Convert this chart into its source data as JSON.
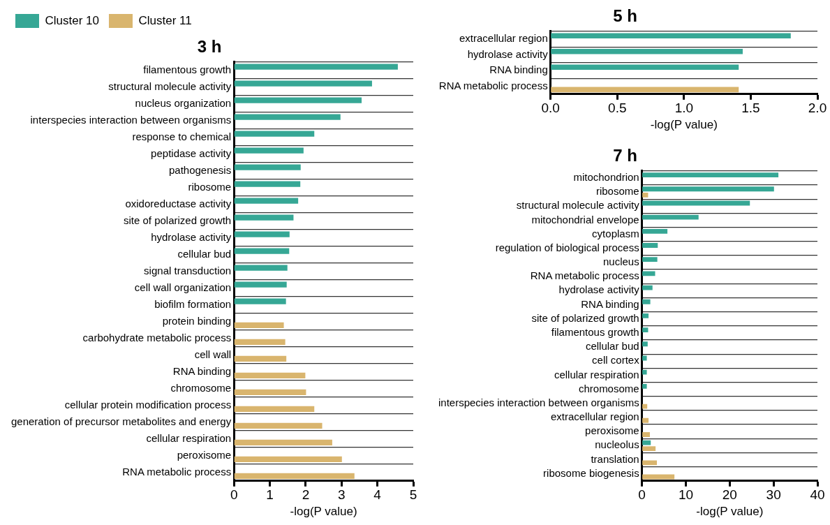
{
  "chart_data": [
    {
      "type": "bar",
      "orientation": "horizontal",
      "title": "3 h",
      "xlabel": "-log(P value)",
      "legend": "top left",
      "grid": "y",
      "categories": [
        "filamentous growth",
        "structural molecule activity",
        "nucleus organization",
        "interspecies interaction between organisms",
        "response to chemical",
        "peptidase activity",
        "pathogenesis",
        "ribosome",
        "oxidoreductase activity",
        "site of polarized growth",
        "hydrolase activity",
        "cellular bud",
        "signal transduction",
        "cell wall organization",
        "biofilm formation",
        "protein binding",
        "carbohydrate metabolic process",
        "cell wall",
        "RNA binding",
        "chromosome",
        "cellular protein modification process",
        "generation of precursor metabolites and energy",
        "cellular respiration",
        "peroxisome",
        "RNA metabolic process"
      ],
      "xlim": [
        0,
        5
      ],
      "xticks": [
        0,
        1,
        2,
        3,
        4,
        5
      ],
      "series": [
        {
          "name": "Cluster 10",
          "color": "#36a795",
          "values": [
            4.57,
            3.85,
            3.56,
            2.97,
            2.24,
            1.94,
            1.86,
            1.85,
            1.79,
            1.66,
            1.55,
            1.54,
            1.49,
            1.47,
            1.45,
            null,
            null,
            null,
            null,
            null,
            null,
            null,
            null,
            null,
            null
          ]
        },
        {
          "name": "Cluster 11",
          "color": "#d9b56e",
          "values": [
            null,
            null,
            null,
            null,
            null,
            null,
            null,
            null,
            null,
            null,
            null,
            null,
            null,
            null,
            null,
            1.39,
            1.43,
            1.46,
            1.99,
            2.01,
            2.24,
            2.46,
            2.74,
            3.01,
            3.36
          ]
        }
      ]
    },
    {
      "type": "bar",
      "orientation": "horizontal",
      "title": "5 h",
      "xlabel": "-log(P value)",
      "grid": "y",
      "categories": [
        "extracellular region",
        "hydrolase activity",
        "RNA binding",
        "RNA metabolic process"
      ],
      "xlim": [
        0,
        2
      ],
      "xticks": [
        {
          "value": 0,
          "label": "0.0"
        },
        {
          "value": 0.5,
          "label": "0.5"
        },
        {
          "value": 1,
          "label": "1.0"
        },
        {
          "value": 1.5,
          "label": "1.5"
        },
        {
          "value": 2,
          "label": "2.0"
        }
      ],
      "series": [
        {
          "color": "#36a795",
          "values": [
            1.8,
            1.44,
            1.41,
            null
          ]
        },
        {
          "color": "#d9b56e",
          "values": [
            null,
            null,
            null,
            1.41
          ]
        }
      ]
    },
    {
      "type": "bar",
      "orientation": "horizontal",
      "title": "7 h",
      "xlabel": "-log(P value)",
      "grid": "y",
      "categories": [
        "mitochondrion",
        "ribosome",
        "structural molecule activity",
        "mitochondrial envelope",
        "cytoplasm",
        "regulation of biological process",
        "nucleus",
        "RNA metabolic process",
        "hydrolase activity",
        "RNA binding",
        "site of polarized growth",
        "filamentous growth",
        "cellular bud",
        "cell cortex",
        "cellular respiration",
        "chromosome",
        "interspecies interaction between organisms",
        "extracellular region",
        "peroxisome",
        "nucleolus",
        "translation",
        "ribosome biogenesis"
      ],
      "xlim": [
        0,
        40
      ],
      "xticks": [
        0,
        10,
        20,
        30,
        40
      ],
      "series": [
        {
          "color": "#36a795",
          "values": [
            31.1,
            30.1,
            24.6,
            12.9,
            5.8,
            3.6,
            3.5,
            3.0,
            2.4,
            1.9,
            1.5,
            1.4,
            1.3,
            1.1,
            1.1,
            1.1,
            null,
            null,
            null,
            2.0,
            null,
            null
          ]
        },
        {
          "color": "#d9b56e",
          "values": [
            null,
            1.4,
            null,
            null,
            null,
            null,
            null,
            null,
            null,
            null,
            null,
            null,
            null,
            null,
            null,
            null,
            1.2,
            1.5,
            1.8,
            3.1,
            3.4,
            7.4
          ]
        }
      ]
    }
  ]
}
